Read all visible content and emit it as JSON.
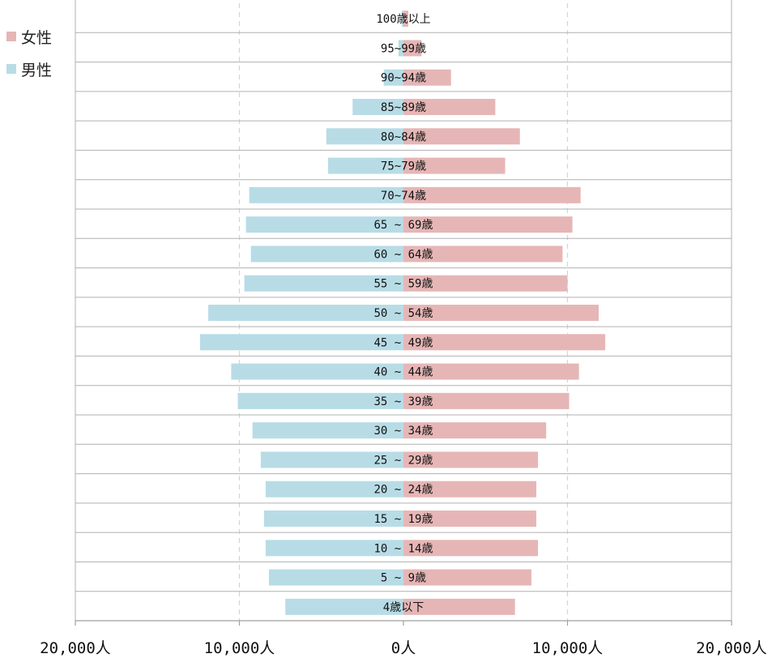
{
  "chart_data": {
    "type": "bar",
    "orientation": "horizontal",
    "layout": "population-pyramid",
    "categories": [
      "100歳以上",
      "95~99歳",
      "90~94歳",
      "85~89歳",
      "80~84歳",
      "75~79歳",
      "70~74歳",
      "65 ~ 69歳",
      "60 ~ 64歳",
      "55 ~ 59歳",
      "50 ~ 54歳",
      "45 ~ 49歳",
      "40 ~ 44歳",
      "35 ~ 39歳",
      "30 ~ 34歳",
      "25 ~ 29歳",
      "20 ~ 24歳",
      "15 ~ 19歳",
      "10 ~ 14歳",
      "5 ~ 9歳",
      "4歳以下"
    ],
    "series": [
      {
        "name": "男性",
        "side": "left",
        "color": "#b8dce6",
        "values": [
          100,
          300,
          1200,
          3100,
          4700,
          4600,
          9400,
          9600,
          9300,
          9700,
          11900,
          12400,
          10500,
          10100,
          9200,
          8700,
          8400,
          8500,
          8400,
          8200,
          7200
        ]
      },
      {
        "name": "女性",
        "side": "right",
        "color": "#e6b6b6",
        "values": [
          300,
          1100,
          2900,
          5600,
          7100,
          6200,
          10800,
          10300,
          9700,
          10000,
          11900,
          12300,
          10700,
          10100,
          8700,
          8200,
          8100,
          8100,
          8200,
          7800,
          6800
        ]
      }
    ],
    "x_tick_labels": [
      "20,000人",
      "10,000人",
      "0人",
      "10,000人",
      "20,000人"
    ],
    "xlim": [
      -20000,
      20000
    ],
    "title": "",
    "xlabel": "",
    "ylabel": "",
    "grid": true,
    "legend_position": "top-left"
  }
}
